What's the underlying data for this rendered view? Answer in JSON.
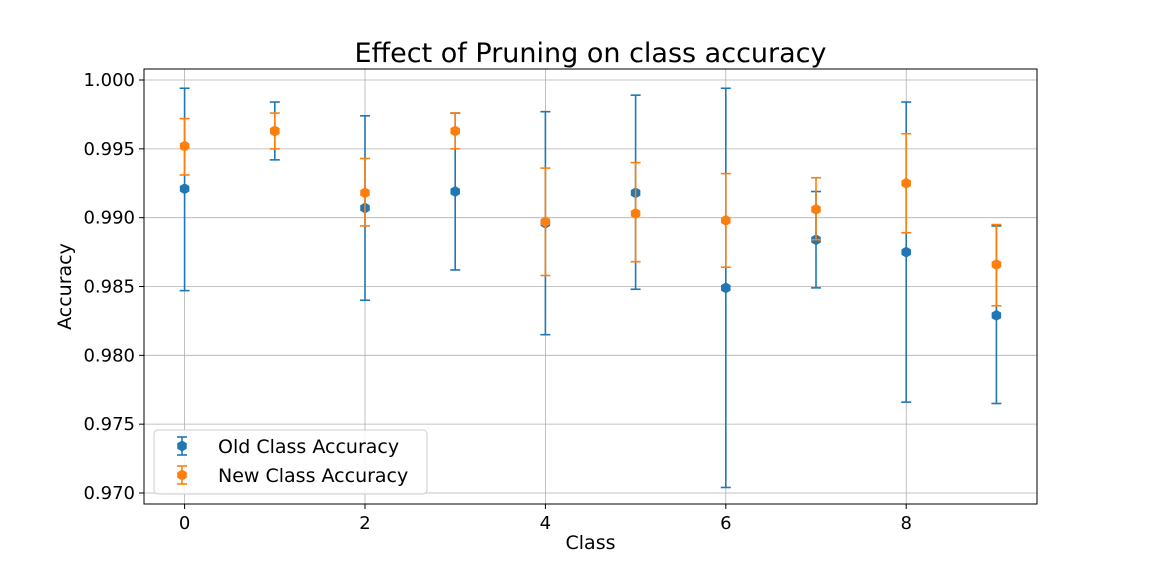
{
  "chart_data": {
    "type": "scatter",
    "title": "Effect of Pruning on class accuracy",
    "xlabel": "Class",
    "ylabel": "Accuracy",
    "xlim": [
      -0.45,
      9.45
    ],
    "ylim": [
      0.9692,
      1.0008
    ],
    "xticks": [
      0,
      2,
      4,
      6,
      8
    ],
    "xtick_labels": [
      "0",
      "2",
      "4",
      "6",
      "8"
    ],
    "yticks": [
      0.97,
      0.975,
      0.98,
      0.985,
      0.99,
      0.995,
      1.0
    ],
    "ytick_labels": [
      "0.970",
      "0.975",
      "0.980",
      "0.985",
      "0.990",
      "0.995",
      "1.000"
    ],
    "grid": true,
    "legend_position": "lower-left",
    "x": [
      0,
      1,
      2,
      3,
      4,
      5,
      6,
      7,
      8,
      9
    ],
    "series": [
      {
        "name": "Old Class Accuracy",
        "color": "#1f77b4",
        "values": [
          0.9921,
          0.9963,
          0.9907,
          0.9919,
          0.9896,
          0.9918,
          0.9849,
          0.9884,
          0.9875,
          0.9829
        ],
        "error_lower": [
          0.9847,
          0.9942,
          0.984,
          0.9862,
          0.9815,
          0.9848,
          0.9704,
          0.9849,
          0.9766,
          0.9765
        ],
        "error_upper": [
          0.9994,
          0.9984,
          0.9974,
          0.9976,
          0.9977,
          0.9989,
          0.9994,
          0.9919,
          0.9984,
          0.9894
        ]
      },
      {
        "name": "New Class Accuracy",
        "color": "#ff7f0e",
        "values": [
          0.9952,
          0.9963,
          0.9918,
          0.9963,
          0.9897,
          0.9903,
          0.9898,
          0.9906,
          0.9925,
          0.9866
        ],
        "error_lower": [
          0.9931,
          0.995,
          0.9894,
          0.995,
          0.9858,
          0.9868,
          0.9864,
          0.9884,
          0.9889,
          0.9836
        ],
        "error_upper": [
          0.9972,
          0.9976,
          0.9943,
          0.9976,
          0.9936,
          0.994,
          0.9932,
          0.9929,
          0.9961,
          0.9895
        ]
      }
    ]
  }
}
